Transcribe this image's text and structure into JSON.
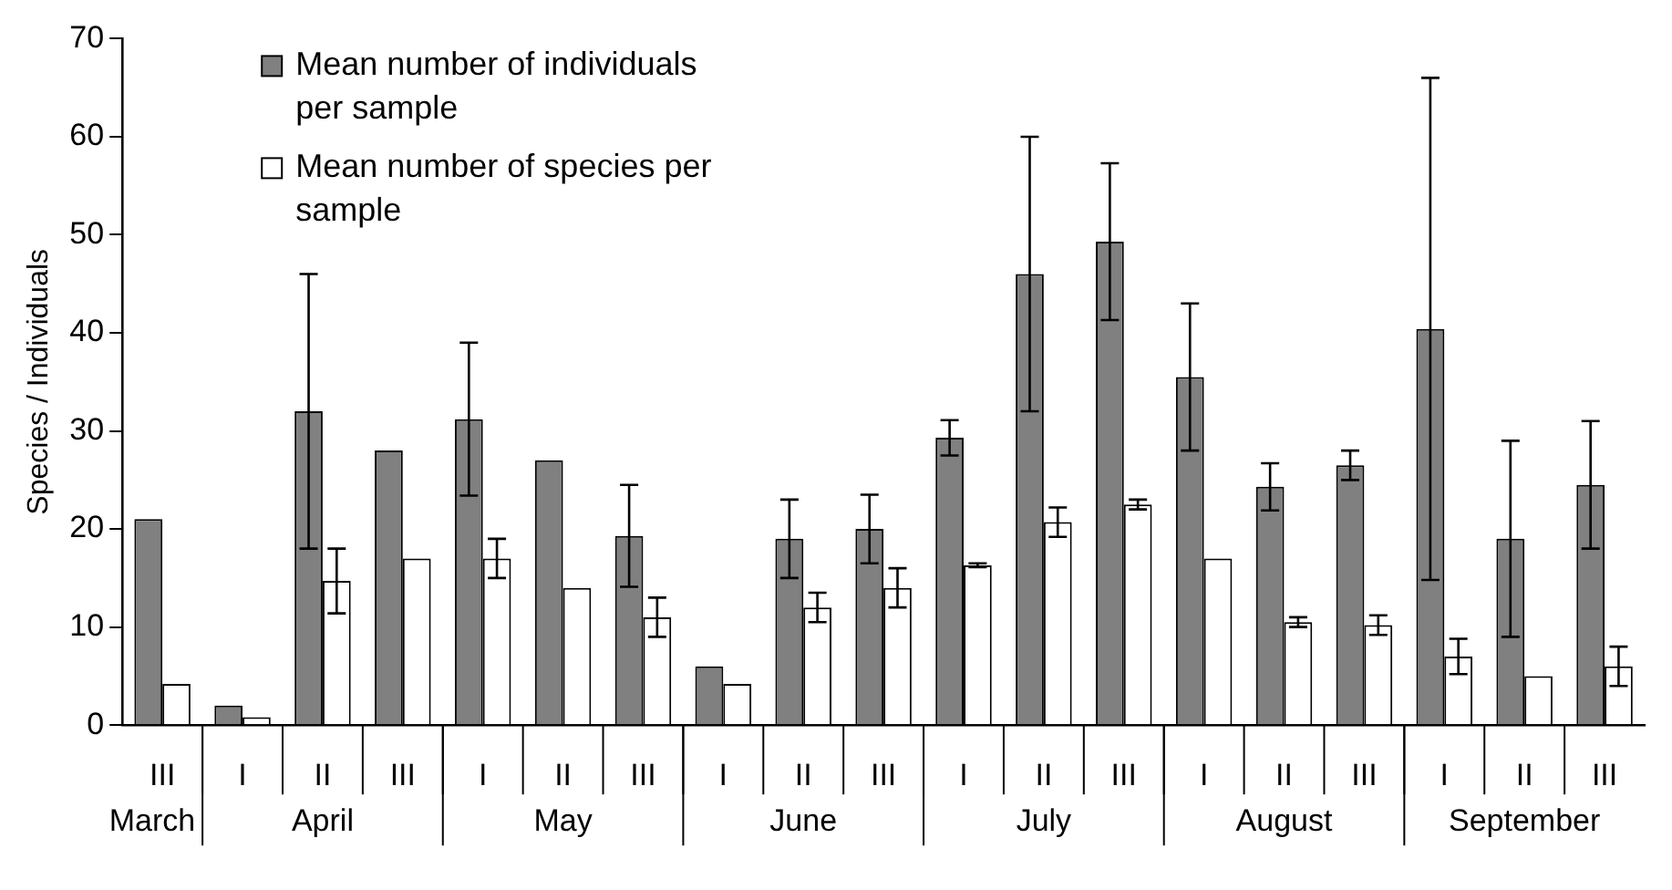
{
  "chart_data": {
    "type": "bar",
    "ylabel": "Species / Individuals",
    "categories": [
      "III",
      "I",
      "II",
      "III",
      "I",
      "II",
      "III",
      "I",
      "II",
      "III",
      "I",
      "II",
      "III",
      "I",
      "II",
      "III",
      "I",
      "II",
      "III"
    ],
    "series": [
      {
        "name": "Mean number of individuals per sample",
        "color": "#808080",
        "values": [
          21,
          2,
          32,
          28,
          31.2,
          27,
          19.3,
          6,
          19,
          20,
          29.3,
          46,
          49.3,
          35.5,
          24.3,
          26.5,
          40.4,
          19,
          24.5
        ],
        "errors": [
          null,
          null,
          14,
          null,
          7.8,
          null,
          5.2,
          null,
          4,
          3.5,
          1.8,
          14,
          8,
          7.5,
          2.4,
          1.5,
          25.6,
          10,
          6.5
        ]
      },
      {
        "name": "Mean number of species per sample",
        "color": "#ffffff",
        "values": [
          4.2,
          0.8,
          14.7,
          17,
          17,
          14,
          11,
          4.2,
          12,
          14,
          16.3,
          20.7,
          22.5,
          17,
          10.5,
          10.2,
          7,
          5,
          6
        ],
        "errors": [
          null,
          null,
          3.3,
          null,
          2,
          null,
          2,
          null,
          1.5,
          2,
          0.2,
          1.5,
          0.5,
          null,
          0.5,
          1,
          1.8,
          null,
          2
        ]
      }
    ],
    "annotations": [
      "March",
      "April",
      "May",
      "June",
      "July",
      "August",
      "September"
    ],
    "ylim": [
      0,
      70
    ],
    "yticks": [
      0,
      10,
      20,
      30,
      40,
      50,
      60,
      70
    ],
    "grid": false,
    "legend": "top left"
  }
}
